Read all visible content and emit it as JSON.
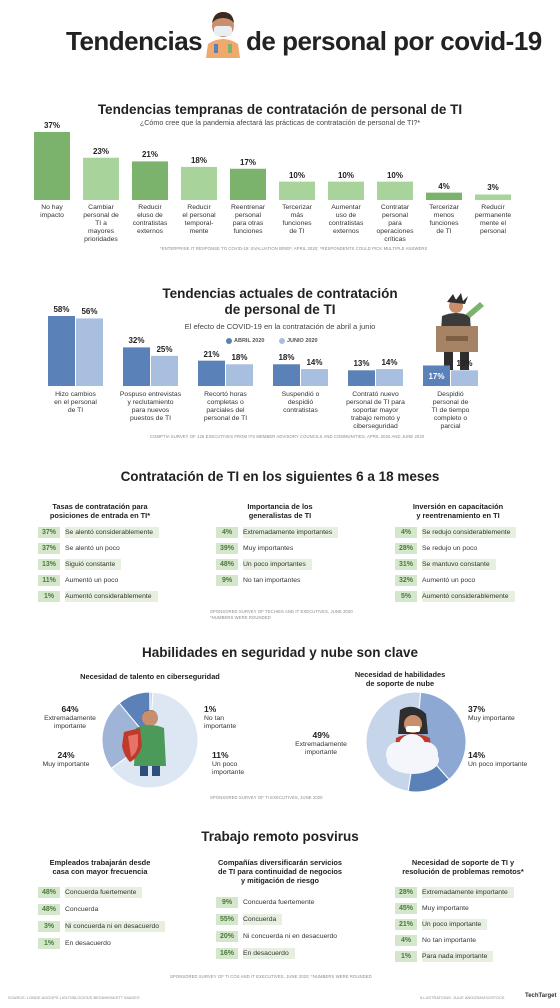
{
  "title": {
    "left": "Tendencias",
    "right": "de personal por covid-19"
  },
  "colors": {
    "green_dark": "#7cb36c",
    "green_light": "#a8d39b",
    "blue_dark": "#5b82b8",
    "blue_light": "#a9bfe0",
    "tag_bg": "#d4e6cb",
    "tag_text": "#4a7a3a"
  },
  "section1": {
    "title": "Tendencias tempranas de contratación de personal de TI",
    "subtitle": "¿Cómo cree que la pandemia afectará las prácticas de contratación de personal de TI?*",
    "footnote": "*ENTERPRISE IT RESPONSE TO COVID-19: EVALUATION BRIEF, APRIL 2020; *RESPONDENTS COULD PICK MULTIPLE ANSWERS"
  },
  "section2": {
    "title_line1": "Tendencias actuales de contratación",
    "title_line2": "de personal de TI",
    "subtitle": "El efecto de COVID-19 en la contratación de abril a junio",
    "legend": [
      "ABRIL 2020",
      "JUNIO 2020"
    ],
    "footnote": "COMPTIA SURVEY OF 125 EXECUTIVES FROM ITS MEMBER ADVISORY COUNCILS AND COMMUNITIES, APRIL 2020 AND JUNE 2020"
  },
  "section3": {
    "title": "Contratación de TI en los siguientes 6 a 18 meses",
    "col1": {
      "head": [
        "Tasas de contratación para",
        "posiciones de entrada en TI*"
      ],
      "rows": [
        {
          "pct": "37%",
          "text": "Se alentó considerablemente"
        },
        {
          "pct": "37%",
          "text": "Se alentó un poco"
        },
        {
          "pct": "13%",
          "text": "Siguió constante"
        },
        {
          "pct": "11%",
          "text": "Aumentó un poco"
        },
        {
          "pct": "1%",
          "text": "Aumentó considerablemente"
        }
      ]
    },
    "col2": {
      "head": [
        "Importancia de los",
        "generalistas de TI"
      ],
      "rows": [
        {
          "pct": "4%",
          "text": "Extremadamente importantes"
        },
        {
          "pct": "39%",
          "text": "Muy importantes"
        },
        {
          "pct": "48%",
          "text": "Un poco importantes"
        },
        {
          "pct": "9%",
          "text": "No tan importantes"
        }
      ]
    },
    "col3": {
      "head": [
        "Inversión en capacitación",
        "y reentrenamiento en TI"
      ],
      "rows": [
        {
          "pct": "4%",
          "text": "Se redujo considerablemente"
        },
        {
          "pct": "28%",
          "text": "Se redujo un poco"
        },
        {
          "pct": "31%",
          "text": "Se mantuvo constante"
        },
        {
          "pct": "32%",
          "text": "Aumentó un poco"
        },
        {
          "pct": "5%",
          "text": "Aumentó considerablemente"
        }
      ]
    },
    "footnote1": "SPONSORED SURVEY OF TECHIES AND IT EXECUTIVES, JUNE 2020",
    "footnote2": "*NUMBERS WERE ROUNDED"
  },
  "section4": {
    "title": "Habilidades en seguridad y nube son clave",
    "left_head": "Necesidad de talento en ciberseguridad",
    "right_head": [
      "Necesidad de habilidades",
      "de soporte de nube"
    ],
    "footnote": "SPONSORED SURVEY OF TI EXECUTIVES, JUNE 2020"
  },
  "section5": {
    "title": "Trabajo remoto posvirus",
    "col1": {
      "head": [
        "Empleados trabajarán desde",
        "casa con mayor frecuencia"
      ],
      "rows": [
        {
          "pct": "48%",
          "text": "Concuerda fuertemente"
        },
        {
          "pct": "48%",
          "text": "Concuerda"
        },
        {
          "pct": "3%",
          "text": "Ni concuerda ni en desacuerdo"
        },
        {
          "pct": "1%",
          "text": "En desacuerdo"
        }
      ]
    },
    "col2": {
      "head": [
        "Compañías diversificarán servicios",
        "de TI para continuidad de negocios",
        "y mitigación de riesgo"
      ],
      "rows": [
        {
          "pct": "9%",
          "text": "Concuerda fuertemente"
        },
        {
          "pct": "55%",
          "text": "Concuerda"
        },
        {
          "pct": "20%",
          "text": "Ni concuerda ni en desacuerdo"
        },
        {
          "pct": "16%",
          "text": "En desacuerdo"
        }
      ]
    },
    "col3": {
      "head": [
        "Necesidad de soporte de TI y",
        "resolución de problemas remotos*"
      ],
      "rows": [
        {
          "pct": "28%",
          "text": "Extremadamente importante"
        },
        {
          "pct": "45%",
          "text": "Muy importante"
        },
        {
          "pct": "21%",
          "text": "Un poco importante"
        },
        {
          "pct": "4%",
          "text": "No tan importante"
        },
        {
          "pct": "1%",
          "text": "Para nada importante"
        }
      ]
    },
    "footnote": "SPONSORED SURVEY OF TI COS AND IT EXECUTIVES, JUNE 2020; *NUMBERS WERE ROUNDED"
  },
  "footer": {
    "left": "SOURCE: LONDE ADGOPS LIGHT/BLOCKS/S BEGNHEIM/STT IMAGES",
    "right": "ILLUSTRATIONS: JULIE ANGGRAI/ISOSTOCK",
    "brand": "TechTarget"
  },
  "chart_data": [
    {
      "type": "bar",
      "title": "Tendencias tempranas de contratación de personal de TI",
      "categories": [
        "No hay impacto",
        "Cambiar personal de TI a mayores prioridades",
        "Reducir el uso de contratistas externos",
        "Reducir el personal temporal-mente",
        "Reentrenar personal para otras funciones",
        "Tercerizar más funciones de TI",
        "Aumentar uso de contratistas externos",
        "Contratar personal para operaciones críticas",
        "Tercerizar menos funciones de TI",
        "Reducir permanente mente el personal"
      ],
      "category_labels": [
        [
          "No hay",
          "impacto"
        ],
        [
          "Cambiar",
          "personal de",
          "TI a",
          "mayores",
          "prioridades"
        ],
        [
          "Reducir",
          "eluso de",
          "contratistas",
          "externos"
        ],
        [
          "Reducir",
          "el personal",
          "temporal-",
          "mente"
        ],
        [
          "Reentrenar",
          "personal",
          "para otras",
          "funciones"
        ],
        [
          "Tercerizar",
          "más",
          "funciones",
          "de TI"
        ],
        [
          "Aumentar",
          "uso de",
          "contratistas",
          "externos"
        ],
        [
          "Contratar",
          "personal",
          "para",
          "operaciones",
          "críticas"
        ],
        [
          "Tercerizar",
          "menos",
          "funciones",
          "de TI"
        ],
        [
          "Reducir",
          "permanente",
          "mente el",
          "personal"
        ]
      ],
      "values": [
        37,
        23,
        21,
        18,
        17,
        10,
        10,
        10,
        4,
        3
      ],
      "labels": [
        "37%",
        "23%",
        "21%",
        "18%",
        "17%",
        "10%",
        "10%",
        "10%",
        "4%",
        "3%"
      ],
      "ylim": [
        0,
        37
      ],
      "grid": false
    },
    {
      "type": "bar",
      "title": "El efecto de COVID-19 en la contratación de abril a junio",
      "categories": [
        "Hizo cambios en el personal de TI",
        "Pospuso entrevistas y reclutamiento para nuevos puestos de TI",
        "Recortó horas completas o parciales del personal de TI",
        "Suspendió o despidió contratistas",
        "Contrató nuevo personal de TI para soportar mayor trabajo remoto y ciberseguridad",
        "Despidió personal de TI de tiempo completo o parcial"
      ],
      "category_labels": [
        [
          "Hizo cambios",
          "en el personal",
          "de TI"
        ],
        [
          "Pospuso entrevistas",
          "y reclutamiento",
          "para nuevos",
          "puestos de TI"
        ],
        [
          "Recortó horas",
          "completas o",
          "parciales del",
          "personal de TI"
        ],
        [
          "Suspendió o",
          "despidió",
          "contratistas"
        ],
        [
          "Contrató nuevo",
          "personal de TI para",
          "soportar mayor",
          "trabajo remoto y",
          "ciberseguridad"
        ],
        [
          "Despidió",
          "personal de",
          "TI de tiempo",
          "completo o",
          "parcial"
        ]
      ],
      "series": [
        {
          "name": "ABRIL 2020",
          "values": [
            58,
            32,
            21,
            18,
            13,
            17
          ],
          "labels": [
            "58%",
            "32%",
            "21%",
            "18%",
            "13%",
            "17%"
          ]
        },
        {
          "name": "JUNIO 2020",
          "values": [
            56,
            25,
            18,
            14,
            14,
            13
          ],
          "labels": [
            "56%",
            "25%",
            "18%",
            "14%",
            "14%",
            "13%"
          ]
        }
      ],
      "ylim": [
        0,
        58
      ],
      "legend": "top"
    },
    {
      "type": "pie",
      "title": "Necesidad de talento en ciberseguridad",
      "slices": [
        {
          "label": "Extremadamente importante",
          "value": 64,
          "pct": "64%"
        },
        {
          "label": "Muy importante",
          "value": 24,
          "pct": "24%"
        },
        {
          "label": "Un poco importante",
          "value": 11,
          "pct": "11%"
        },
        {
          "label": "No tan importante",
          "value": 1,
          "pct": "1%"
        }
      ]
    },
    {
      "type": "pie",
      "title": "Necesidad de habilidades de soporte de nube",
      "slices": [
        {
          "label": "Extremadamente importante",
          "value": 49,
          "pct": "49%"
        },
        {
          "label": "Muy importante",
          "value": 37,
          "pct": "37%"
        },
        {
          "label": "Un poco importante",
          "value": 14,
          "pct": "14%"
        }
      ]
    }
  ]
}
